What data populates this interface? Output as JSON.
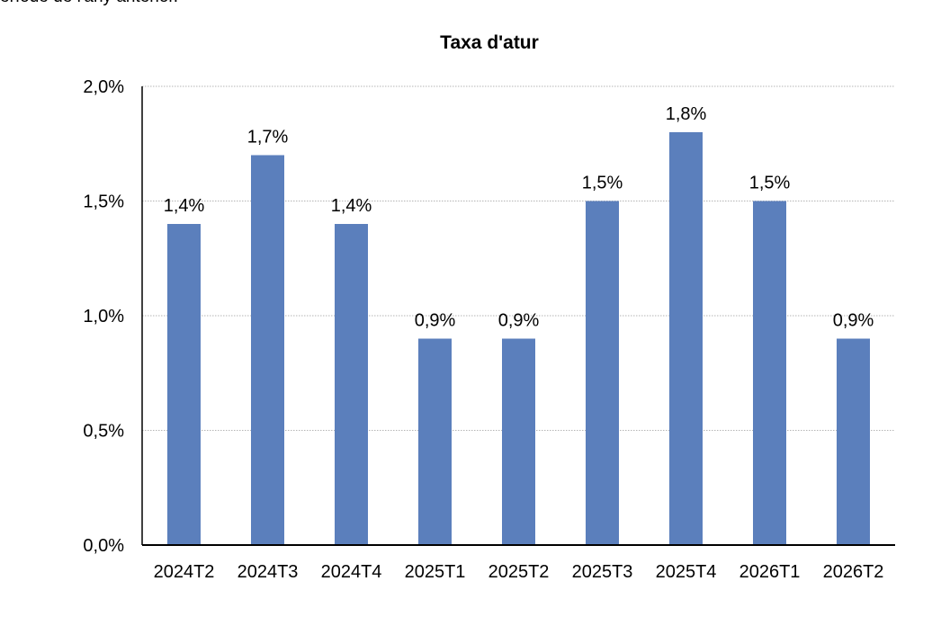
{
  "top_text": "eríode de l'any anterior.",
  "chart_data": {
    "type": "bar",
    "title": "Taxa d'atur",
    "xlabel": "",
    "ylabel": "",
    "categories": [
      "2024T2",
      "2024T3",
      "2024T4",
      "2025T1",
      "2025T2",
      "2025T3",
      "2025T4",
      "2026T1",
      "2026T2"
    ],
    "values": [
      1.4,
      1.7,
      1.4,
      0.9,
      0.9,
      1.5,
      1.8,
      1.5,
      0.9
    ],
    "value_labels": [
      "1,4%",
      "1,7%",
      "1,4%",
      "0,9%",
      "0,9%",
      "1,5%",
      "1,8%",
      "1,5%",
      "0,9%"
    ],
    "ylim": [
      0,
      2.0
    ],
    "yticks": [
      0,
      0.5,
      1.0,
      1.5,
      2.0
    ],
    "ytick_labels": [
      "0,0%",
      "0,5%",
      "1,0%",
      "1,5%",
      "2,0%"
    ],
    "grid": "horizontal dotted",
    "legend": "none",
    "bar_color": "#5b7fbc"
  }
}
